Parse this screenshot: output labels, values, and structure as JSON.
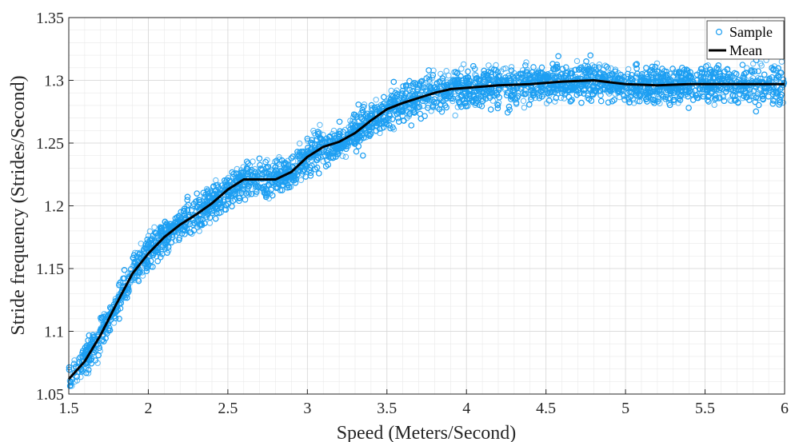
{
  "chart_data": {
    "type": "scatter",
    "xlabel": "Speed (Meters/Second)",
    "ylabel": "Stride frequency (Strides/Second)",
    "xlim": [
      1.5,
      6
    ],
    "ylim": [
      1.05,
      1.35
    ],
    "x_ticks": [
      1.5,
      2,
      2.5,
      3,
      3.5,
      4,
      4.5,
      5,
      5.5,
      6
    ],
    "y_ticks": [
      1.05,
      1.1,
      1.15,
      1.2,
      1.25,
      1.3,
      1.35
    ],
    "x_tick_labels": [
      "1.5",
      "2",
      "2.5",
      "3",
      "3.5",
      "4",
      "4.5",
      "5",
      "5.5",
      "6"
    ],
    "y_tick_labels": [
      "1.05",
      "1.1",
      "1.15",
      "1.2",
      "1.25",
      "1.3",
      "1.35"
    ],
    "grid": true,
    "minor_grid": true,
    "legend_position": "top-right",
    "series": [
      {
        "name": "Sample",
        "marker": "circle-open",
        "color": "#1E9FF2",
        "description_spread": 0.012,
        "approx_points": 9000
      },
      {
        "name": "Mean",
        "marker": "line",
        "color": "#000000",
        "x": [
          1.5,
          1.6,
          1.7,
          1.8,
          1.9,
          2.0,
          2.1,
          2.2,
          2.3,
          2.4,
          2.5,
          2.6,
          2.7,
          2.8,
          2.9,
          3.0,
          3.1,
          3.2,
          3.3,
          3.4,
          3.5,
          3.6,
          3.7,
          3.8,
          3.9,
          4.0,
          4.2,
          4.4,
          4.6,
          4.8,
          5.0,
          5.2,
          5.4,
          5.6,
          5.8,
          6.0
        ],
        "y": [
          1.062,
          1.076,
          1.097,
          1.122,
          1.146,
          1.162,
          1.175,
          1.185,
          1.193,
          1.202,
          1.213,
          1.221,
          1.221,
          1.221,
          1.227,
          1.239,
          1.247,
          1.251,
          1.258,
          1.268,
          1.277,
          1.282,
          1.286,
          1.29,
          1.293,
          1.294,
          1.296,
          1.297,
          1.299,
          1.3,
          1.297,
          1.296,
          1.297,
          1.297,
          1.297,
          1.297
        ]
      }
    ]
  }
}
